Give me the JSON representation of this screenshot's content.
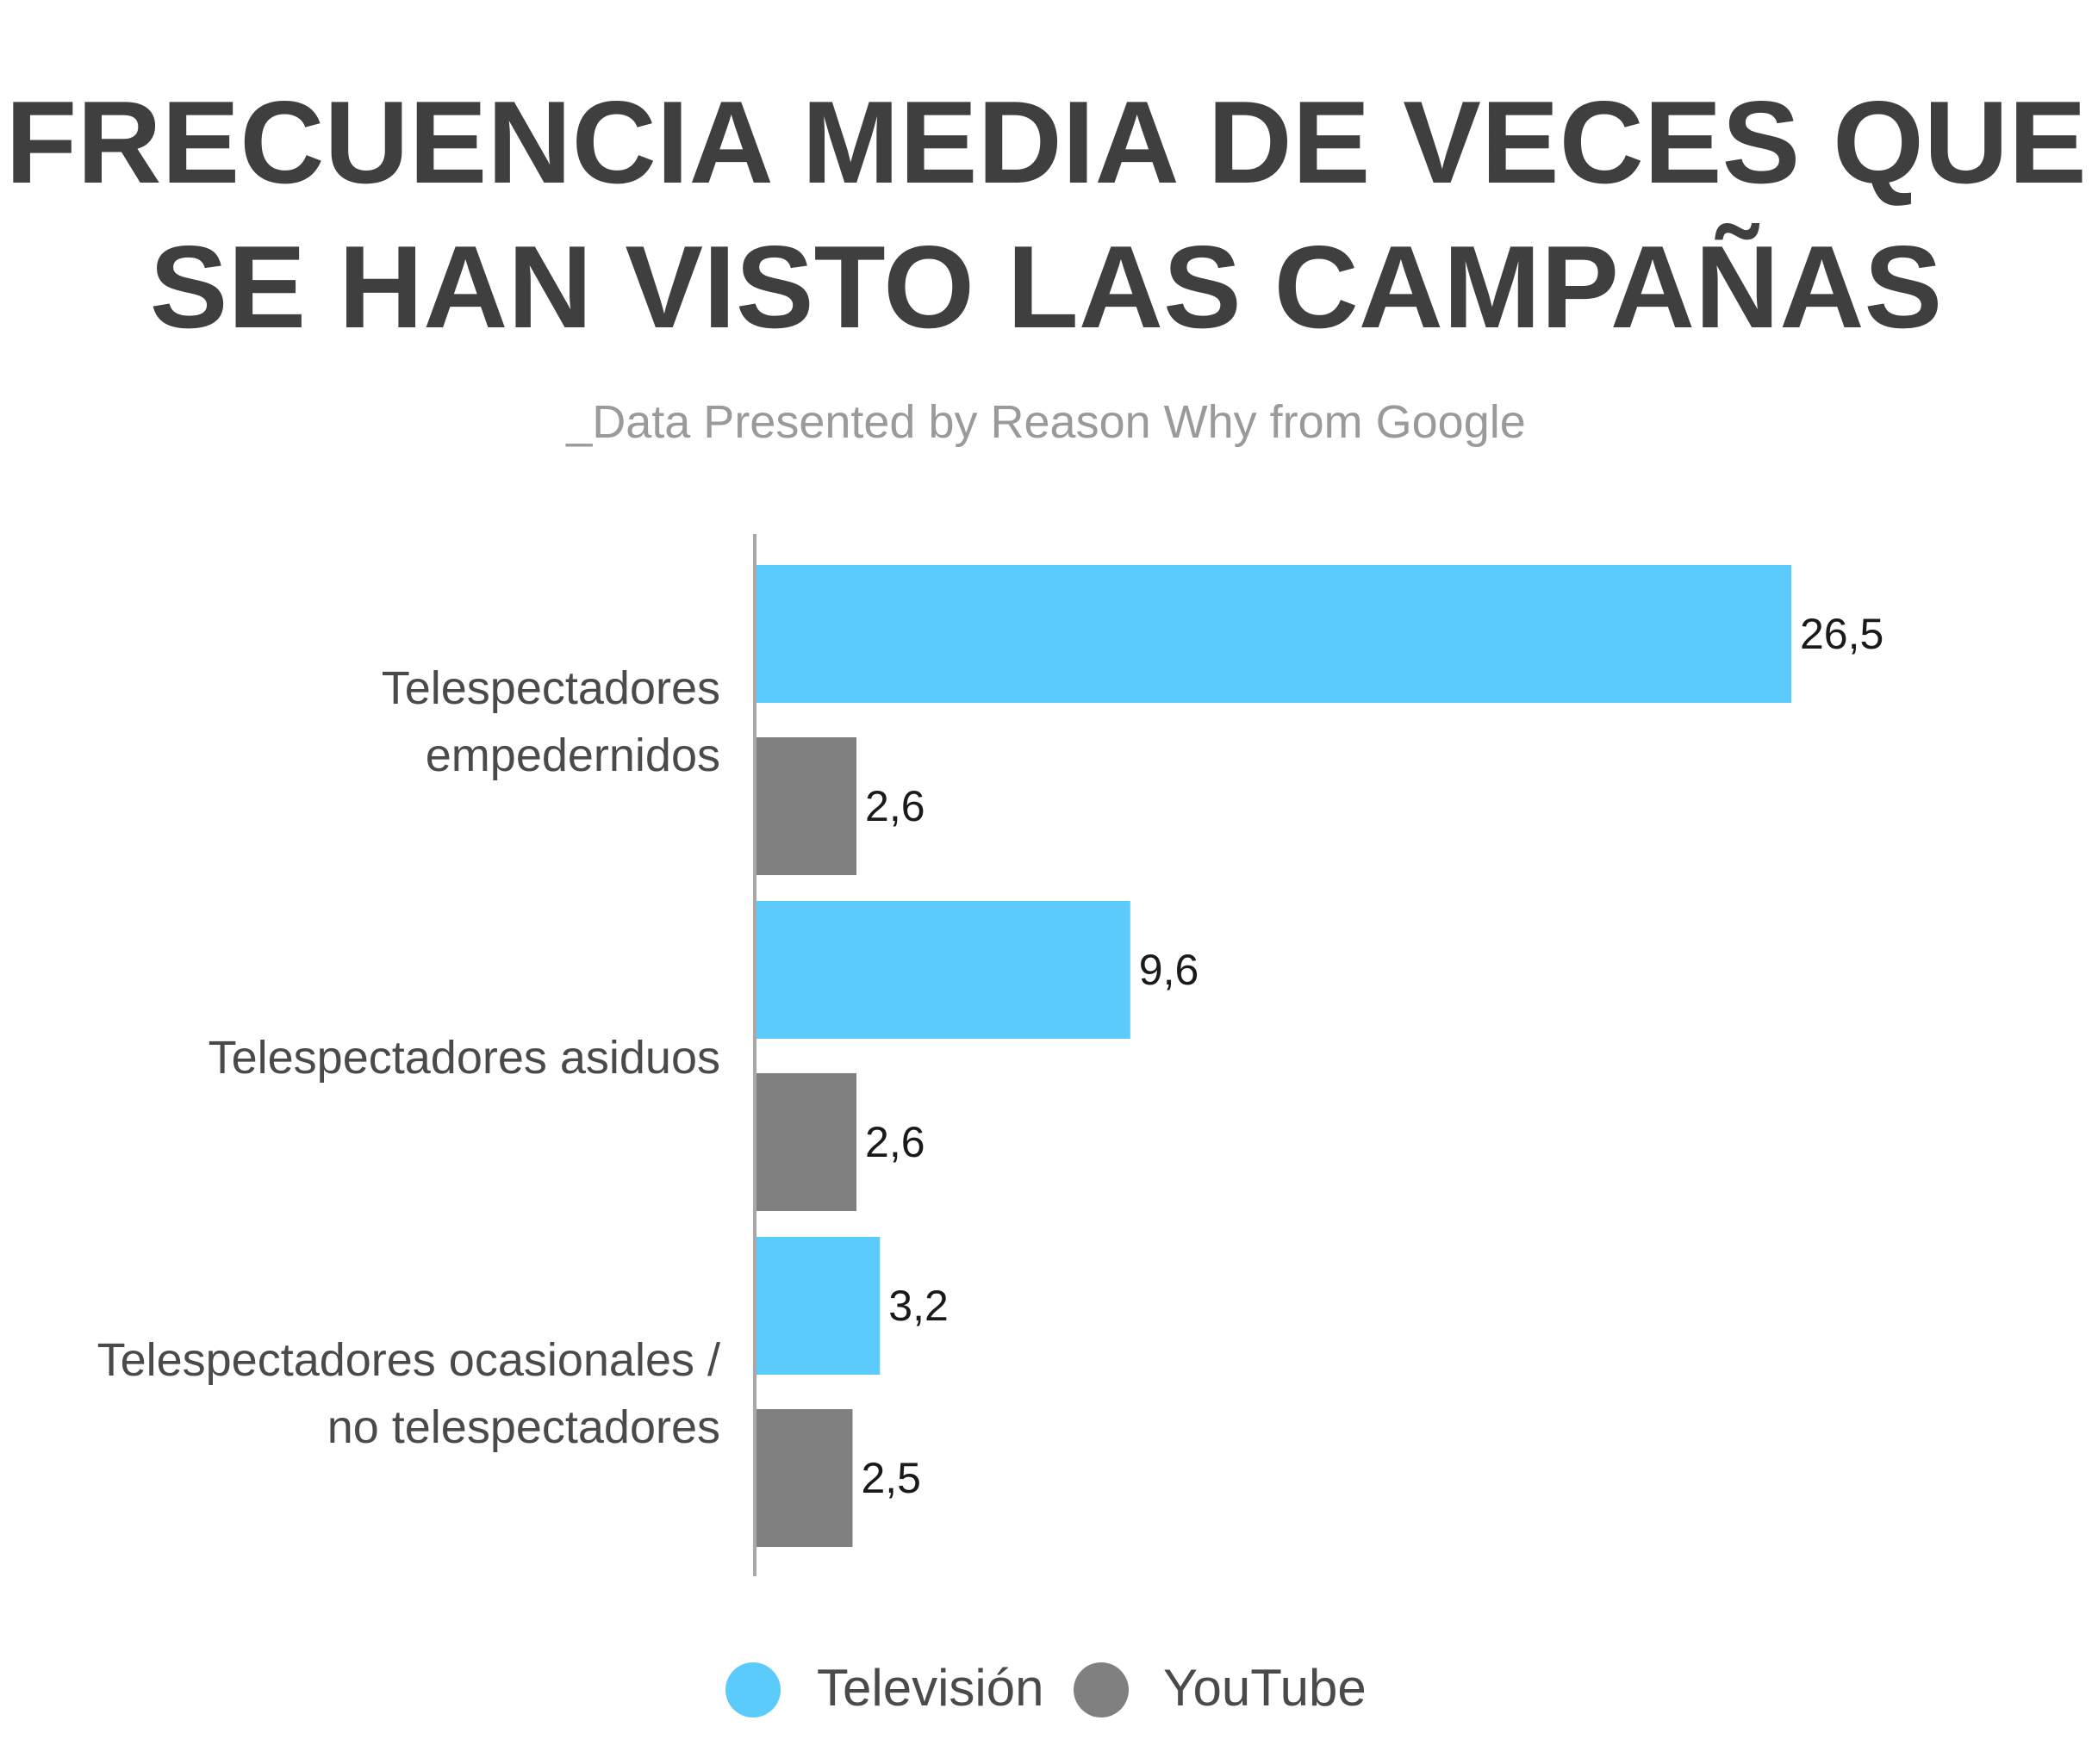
{
  "chart_data": {
    "type": "bar",
    "orientation": "horizontal",
    "title_lines": [
      "FRECUENCIA MEDIA DE VECES QUE",
      "SE HAN VISTO LAS CAMPAÑAS"
    ],
    "subtitle": "_Data Presented by Reason Why from Google",
    "categories": [
      [
        "Telespectadores",
        "empedernidos"
      ],
      [
        "Telespectadores asiduos"
      ],
      [
        "Telespectadores ocasionales /",
        "no telespectadores"
      ]
    ],
    "series": [
      {
        "name": "Televisión",
        "color": "#5bcbfc",
        "values": [
          26.5,
          9.6,
          3.2
        ],
        "labels": [
          "26,5",
          "9,6",
          "3,2"
        ]
      },
      {
        "name": "YouTube",
        "color": "#808080",
        "values": [
          2.6,
          2.6,
          2.5
        ],
        "labels": [
          "2,6",
          "2,6",
          "2,5"
        ]
      }
    ],
    "xlim": [
      0,
      30
    ],
    "grid": false,
    "legend_position": "bottom-center"
  }
}
